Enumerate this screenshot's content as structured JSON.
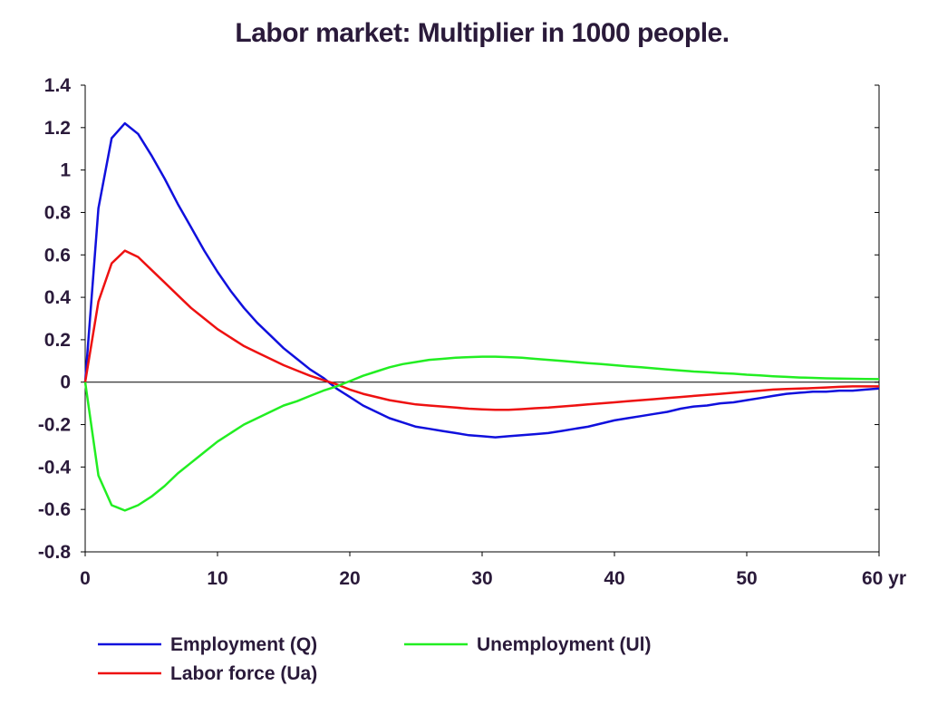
{
  "chart_data": {
    "type": "line",
    "title": "Labor market: Multiplier in 1000 people.",
    "xlim": [
      0,
      60
    ],
    "ylim": [
      -0.8,
      1.4
    ],
    "x_ticks": [
      {
        "value": 0,
        "label": "0"
      },
      {
        "value": 10,
        "label": "10"
      },
      {
        "value": 20,
        "label": "20"
      },
      {
        "value": 30,
        "label": "30"
      },
      {
        "value": 40,
        "label": "40"
      },
      {
        "value": 50,
        "label": "50"
      },
      {
        "value": 60,
        "label": "60 yr"
      }
    ],
    "y_ticks": [
      {
        "value": 1.4,
        "label": "1.4"
      },
      {
        "value": 1.2,
        "label": "1.2"
      },
      {
        "value": 1.0,
        "label": "1"
      },
      {
        "value": 0.8,
        "label": "0.8"
      },
      {
        "value": 0.6,
        "label": "0.6"
      },
      {
        "value": 0.4,
        "label": "0.4"
      },
      {
        "value": 0.2,
        "label": "0.2"
      },
      {
        "value": 0.0,
        "label": "0"
      },
      {
        "value": -0.2,
        "label": "-0.2"
      },
      {
        "value": -0.4,
        "label": "-0.4"
      },
      {
        "value": -0.6,
        "label": "-0.6"
      },
      {
        "value": -0.8,
        "label": "-0.8"
      }
    ],
    "grid": false,
    "zero_line": true,
    "legend_position": "bottom",
    "x": [
      0,
      1,
      2,
      3,
      4,
      5,
      6,
      7,
      8,
      9,
      10,
      11,
      12,
      13,
      14,
      15,
      16,
      17,
      18,
      19,
      20,
      21,
      22,
      23,
      24,
      25,
      26,
      27,
      28,
      29,
      30,
      31,
      32,
      33,
      34,
      35,
      36,
      37,
      38,
      39,
      40,
      41,
      42,
      43,
      44,
      45,
      46,
      47,
      48,
      49,
      50,
      51,
      52,
      53,
      54,
      55,
      56,
      57,
      58,
      59,
      60
    ],
    "series": [
      {
        "name": "Employment (Q)",
        "color": "#1010dd",
        "values": [
          0,
          0.82,
          1.15,
          1.22,
          1.17,
          1.07,
          0.96,
          0.84,
          0.73,
          0.62,
          0.52,
          0.43,
          0.35,
          0.28,
          0.22,
          0.16,
          0.11,
          0.06,
          0.02,
          -0.03,
          -0.07,
          -0.11,
          -0.14,
          -0.17,
          -0.19,
          -0.21,
          -0.22,
          -0.23,
          -0.24,
          -0.25,
          -0.255,
          -0.26,
          -0.255,
          -0.25,
          -0.245,
          -0.24,
          -0.23,
          -0.22,
          -0.21,
          -0.195,
          -0.18,
          -0.17,
          -0.16,
          -0.15,
          -0.14,
          -0.125,
          -0.115,
          -0.11,
          -0.1,
          -0.095,
          -0.085,
          -0.075,
          -0.065,
          -0.055,
          -0.05,
          -0.045,
          -0.045,
          -0.04,
          -0.04,
          -0.035,
          -0.03
        ]
      },
      {
        "name": "Labor force (Ua)",
        "color": "#ee1111",
        "values": [
          0,
          0.38,
          0.56,
          0.62,
          0.59,
          0.53,
          0.47,
          0.41,
          0.35,
          0.3,
          0.25,
          0.21,
          0.17,
          0.14,
          0.11,
          0.08,
          0.055,
          0.03,
          0.01,
          -0.01,
          -0.035,
          -0.055,
          -0.07,
          -0.085,
          -0.095,
          -0.105,
          -0.11,
          -0.115,
          -0.12,
          -0.125,
          -0.128,
          -0.13,
          -0.13,
          -0.127,
          -0.123,
          -0.12,
          -0.115,
          -0.11,
          -0.105,
          -0.1,
          -0.095,
          -0.09,
          -0.085,
          -0.08,
          -0.075,
          -0.07,
          -0.065,
          -0.06,
          -0.055,
          -0.05,
          -0.045,
          -0.04,
          -0.035,
          -0.032,
          -0.03,
          -0.028,
          -0.025,
          -0.022,
          -0.02,
          -0.02,
          -0.02
        ]
      },
      {
        "name": "Unemployment (Ul)",
        "color": "#22ee22",
        "values": [
          0,
          -0.44,
          -0.58,
          -0.605,
          -0.58,
          -0.54,
          -0.49,
          -0.43,
          -0.38,
          -0.33,
          -0.28,
          -0.24,
          -0.2,
          -0.17,
          -0.14,
          -0.11,
          -0.09,
          -0.065,
          -0.04,
          -0.02,
          0.005,
          0.03,
          0.05,
          0.07,
          0.085,
          0.095,
          0.105,
          0.11,
          0.115,
          0.118,
          0.12,
          0.12,
          0.118,
          0.115,
          0.11,
          0.105,
          0.1,
          0.095,
          0.09,
          0.085,
          0.08,
          0.075,
          0.07,
          0.065,
          0.06,
          0.055,
          0.05,
          0.047,
          0.043,
          0.04,
          0.035,
          0.032,
          0.028,
          0.025,
          0.022,
          0.02,
          0.018,
          0.017,
          0.016,
          0.015,
          0.014
        ]
      }
    ]
  }
}
